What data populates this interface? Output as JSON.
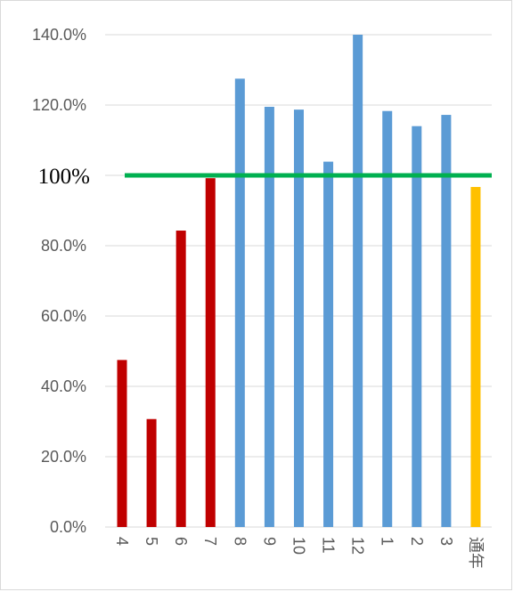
{
  "chart_data": {
    "type": "bar",
    "title": "",
    "xlabel": "",
    "ylabel": "",
    "ylim": [
      0,
      140
    ],
    "yticks": [
      "0.0%",
      "20.0%",
      "40.0%",
      "60.0%",
      "80.0%",
      "100%",
      "120.0%",
      "140.0%"
    ],
    "grid": true,
    "legend": "none",
    "categories": [
      "4",
      "5",
      "6",
      "7",
      "8",
      "9",
      "10",
      "11",
      "12",
      "1",
      "2",
      "3",
      "通年"
    ],
    "values": [
      47.5,
      30.7,
      84.3,
      99.2,
      127.5,
      119.5,
      118.7,
      103.9,
      140.0,
      118.3,
      114.0,
      117.2,
      96.7
    ],
    "colors": [
      "#c00000",
      "#c00000",
      "#c00000",
      "#c00000",
      "#5b9bd5",
      "#5b9bd5",
      "#5b9bd5",
      "#5b9bd5",
      "#5b9bd5",
      "#5b9bd5",
      "#5b9bd5",
      "#5b9bd5",
      "#ffc000"
    ],
    "reference_line": {
      "value": 100,
      "label": "100%",
      "color": "#00b050"
    },
    "gridline_color": "#d9d9d9",
    "tick_label_color": "#595959"
  }
}
